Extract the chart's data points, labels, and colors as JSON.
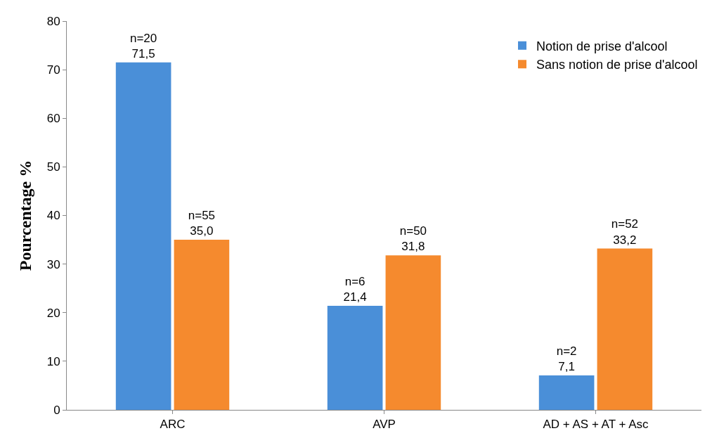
{
  "chart_data": {
    "type": "bar",
    "ylabel": "Pourcentage %",
    "categories": [
      "ARC",
      "AVP",
      "AD + AS + AT + Asc"
    ],
    "series": [
      {
        "name": "Notion de prise d'alcool",
        "color": "#4a8fd8",
        "values": [
          71.5,
          21.4,
          7.1
        ],
        "value_labels": [
          "n=20\n71,5",
          "n=6\n21,4",
          "n=2\n7,1"
        ]
      },
      {
        "name": "Sans notion de prise d'alcool",
        "color": "#f58a2e",
        "values": [
          35.0,
          31.8,
          33.2
        ],
        "value_labels": [
          "n=55\n35,0",
          "n=50\n31,8",
          "n=52\n33,2"
        ]
      }
    ],
    "ylim": [
      0,
      80
    ],
    "yticks": [
      0,
      10,
      20,
      30,
      40,
      50,
      60,
      70,
      80
    ],
    "legend": "top right"
  }
}
